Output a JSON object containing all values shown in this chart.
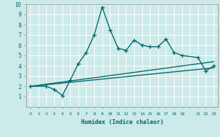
{
  "xlabel": "Humidex (Indice chaleur)",
  "bg_color": "#cceaea",
  "grid_color": "#ffffff",
  "line_color": "#006666",
  "xlim": [
    -0.5,
    23.5
  ],
  "ylim": [
    0,
    10
  ],
  "yticks": [
    1,
    2,
    3,
    4,
    5,
    6,
    7,
    8,
    9,
    10
  ],
  "jagged_x": [
    0,
    2,
    3,
    4,
    5,
    6,
    7,
    8,
    9,
    10,
    11,
    12,
    13,
    14,
    15,
    16,
    17,
    18,
    19,
    21,
    22,
    23
  ],
  "jagged_y": [
    2.0,
    2.0,
    1.7,
    1.1,
    2.6,
    4.2,
    5.3,
    7.0,
    9.7,
    7.5,
    5.7,
    5.5,
    6.5,
    6.0,
    5.85,
    5.85,
    6.6,
    5.3,
    5.0,
    4.8,
    3.5,
    4.0
  ],
  "line2_x": [
    0,
    23
  ],
  "line2_y": [
    2.0,
    3.8
  ],
  "line3_x": [
    0,
    23
  ],
  "line3_y": [
    2.0,
    4.4
  ],
  "line_width": 1.0,
  "marker_size": 4
}
